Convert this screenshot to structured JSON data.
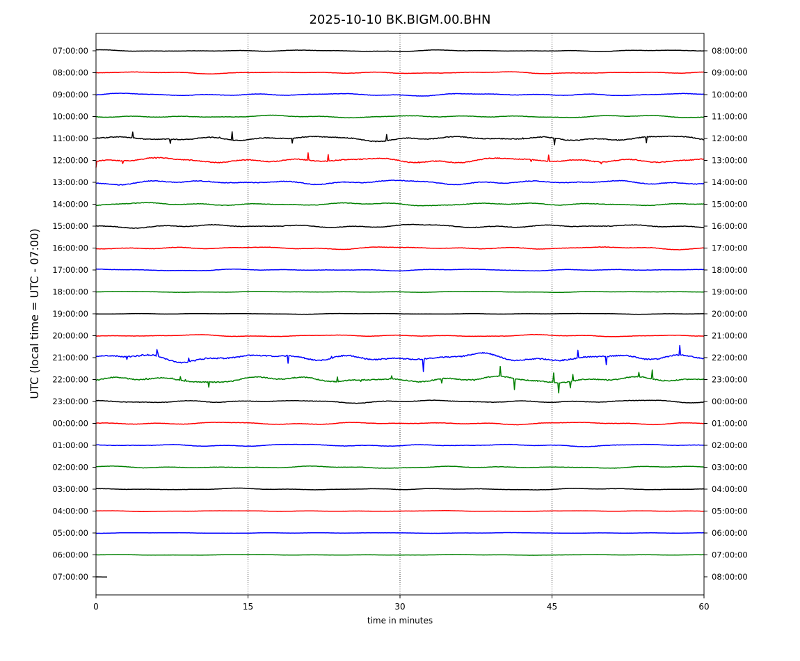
{
  "chart_data": {
    "type": "line",
    "title": "2025-10-10 BK.BIGM.00.BHN",
    "xlabel": "time in minutes",
    "ylabel": "UTC (local time = UTC - 07:00)",
    "xlim": [
      0,
      60
    ],
    "xticks": [
      0,
      15,
      30,
      45,
      60
    ],
    "grid": "vertical dotted lines at 15, 30, 45 minutes",
    "trace_colors": [
      "#000000",
      "#ff0000",
      "#0000ff",
      "#008000"
    ],
    "left_labels": [
      "07:00:00",
      "08:00:00",
      "09:00:00",
      "10:00:00",
      "11:00:00",
      "12:00:00",
      "13:00:00",
      "14:00:00",
      "15:00:00",
      "16:00:00",
      "17:00:00",
      "18:00:00",
      "19:00:00",
      "20:00:00",
      "21:00:00",
      "22:00:00",
      "23:00:00",
      "00:00:00",
      "01:00:00",
      "02:00:00",
      "03:00:00",
      "04:00:00",
      "05:00:00",
      "06:00:00",
      "07:00:00"
    ],
    "right_labels": [
      "08:00:00",
      "09:00:00",
      "10:00:00",
      "11:00:00",
      "12:00:00",
      "13:00:00",
      "14:00:00",
      "15:00:00",
      "16:00:00",
      "17:00:00",
      "18:00:00",
      "19:00:00",
      "20:00:00",
      "21:00:00",
      "22:00:00",
      "23:00:00",
      "00:00:00",
      "01:00:00",
      "02:00:00",
      "03:00:00",
      "04:00:00",
      "05:00:00",
      "06:00:00",
      "07:00:00",
      "08:00:00"
    ],
    "activity": [
      1.0,
      1.2,
      1.6,
      1.5,
      3.2,
      3.4,
      2.8,
      2.0,
      2.2,
      1.6,
      1.1,
      0.6,
      0.5,
      1.2,
      5.0,
      4.0,
      1.8,
      1.5,
      1.4,
      1.3,
      1.0,
      0.5,
      0.4,
      0.4,
      0.3
    ],
    "last_trace_end_minute": 1.1
  }
}
